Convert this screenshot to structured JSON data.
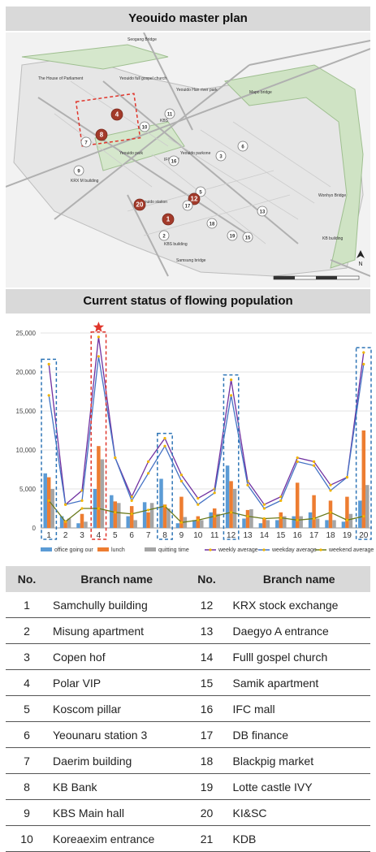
{
  "section1_title": "Yeouido master plan",
  "section2_title": "Current status of flowing population",
  "map": {
    "north_label": "N",
    "labels": [
      "Seogang Bridge",
      "The House of Parliament",
      "Yeouido full gospel church",
      "Yeouido Han river park",
      "Mapo bridge",
      "KBS",
      "Yeouido park",
      "IFC mall",
      "Yeouido parkone",
      "KRX M building",
      "Yeouido station",
      "KBS building",
      "Samsung bridge",
      "KB building",
      "Wonhyo Bridge"
    ],
    "branch_markers": [
      "1",
      "2",
      "3",
      "4",
      "5",
      "6",
      "7",
      "8",
      "9",
      "10",
      "11",
      "12",
      "13",
      "15",
      "16",
      "17",
      "18",
      "19",
      "20"
    ],
    "highlighted_markers": [
      "1",
      "4",
      "8",
      "12",
      "20"
    ]
  },
  "chart_data": {
    "type": "bar",
    "categories": [
      "1",
      "2",
      "3",
      "4",
      "5",
      "6",
      "7",
      "8",
      "9",
      "10",
      "11",
      "12",
      "13",
      "14",
      "15",
      "16",
      "17",
      "18",
      "19",
      "20"
    ],
    "ylim": [
      0,
      25000
    ],
    "yticks": [
      "0",
      "5,000",
      "10,000",
      "15,000",
      "20,000",
      "25,000"
    ],
    "grid": true,
    "legend_position": "bottom",
    "series": [
      {
        "name": "office going our",
        "kind": "bar",
        "color": "#5b9bd5",
        "values": [
          7000,
          1500,
          600,
          5000,
          4200,
          1500,
          3300,
          6300,
          600,
          1000,
          2000,
          8000,
          1200,
          600,
          1000,
          1500,
          2000,
          1000,
          800,
          3500
        ]
      },
      {
        "name": "lunch",
        "kind": "bar",
        "color": "#ed7d31",
        "values": [
          6500,
          1000,
          1800,
          10500,
          3400,
          2800,
          2000,
          3000,
          4000,
          1500,
          2500,
          6000,
          2300,
          1200,
          2000,
          5800,
          4200,
          3500,
          4000,
          12500
        ]
      },
      {
        "name": "quitting time",
        "kind": "bar",
        "color": "#a5a5a5",
        "values": [
          5000,
          1200,
          800,
          8800,
          3200,
          1000,
          3200,
          2500,
          1400,
          1000,
          1800,
          5000,
          2400,
          1000,
          1500,
          1500,
          1200,
          1000,
          1800,
          5500
        ]
      },
      {
        "name": "weekly average",
        "kind": "line",
        "color": "#7030a0",
        "values": [
          21000,
          3000,
          4800,
          24500,
          9000,
          4000,
          8500,
          11500,
          6800,
          3800,
          5000,
          19000,
          6000,
          3000,
          4000,
          9000,
          8500,
          5500,
          6500,
          22500
        ]
      },
      {
        "name": "weekday average",
        "kind": "line",
        "color": "#4472c4",
        "values": [
          17000,
          3000,
          3500,
          22000,
          9000,
          3500,
          7000,
          10500,
          6000,
          3000,
          4500,
          17000,
          5500,
          2500,
          3500,
          8500,
          8000,
          4800,
          6500,
          21000
        ]
      },
      {
        "name": "weekend average",
        "kind": "line",
        "color": "#6a7a1c",
        "values": [
          3500,
          800,
          2500,
          2500,
          2000,
          1800,
          2300,
          2800,
          700,
          1000,
          1500,
          2000,
          1500,
          1200,
          1300,
          1000,
          1200,
          2000,
          1000,
          1500
        ]
      }
    ],
    "highlighted_categories": [
      "1",
      "4",
      "8",
      "12",
      "20"
    ],
    "star_category": "4"
  },
  "table": {
    "headers": [
      "No.",
      "Branch name",
      "No.",
      "Branch name"
    ],
    "rows": [
      [
        "1",
        "Samchully building",
        "12",
        "KRX stock exchange"
      ],
      [
        "2",
        "Misung apartment",
        "13",
        "Daegyo A entrance"
      ],
      [
        "3",
        "Copen hof",
        "14",
        "Fulll gospel church"
      ],
      [
        "4",
        "Polar VIP",
        "15",
        "Samik apartment"
      ],
      [
        "5",
        "Koscom pillar",
        "16",
        "IFC mall"
      ],
      [
        "6",
        "Yeounaru station 3",
        "17",
        "DB finance"
      ],
      [
        "7",
        "Daerim building",
        "18",
        "Blackpig market"
      ],
      [
        "8",
        "KB Bank",
        "19",
        "Lotte castle IVY"
      ],
      [
        "9",
        "KBS Main hall",
        "20",
        "KI&SC"
      ],
      [
        "10",
        "Koreaexim entrance",
        "21",
        "KDB"
      ]
    ]
  }
}
